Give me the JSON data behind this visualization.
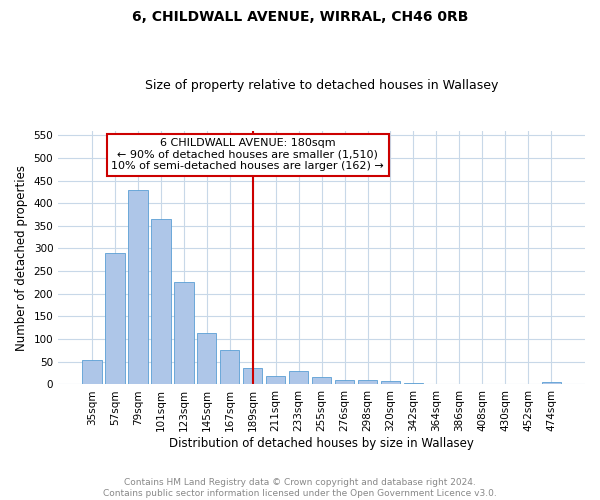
{
  "title1": "6, CHILDWALL AVENUE, WIRRAL, CH46 0RB",
  "title2": "Size of property relative to detached houses in Wallasey",
  "xlabel": "Distribution of detached houses by size in Wallasey",
  "ylabel": "Number of detached properties",
  "bar_labels": [
    "35sqm",
    "57sqm",
    "79sqm",
    "101sqm",
    "123sqm",
    "145sqm",
    "167sqm",
    "189sqm",
    "211sqm",
    "233sqm",
    "255sqm",
    "276sqm",
    "298sqm",
    "320sqm",
    "342sqm",
    "364sqm",
    "386sqm",
    "408sqm",
    "430sqm",
    "452sqm",
    "474sqm"
  ],
  "bar_values": [
    55,
    290,
    430,
    365,
    225,
    113,
    77,
    37,
    18,
    29,
    17,
    10,
    9,
    8,
    4,
    0,
    0,
    0,
    0,
    0,
    5
  ],
  "bar_color": "#aec6e8",
  "bar_edge_color": "#5a9fd4",
  "vline_x_idx": 7,
  "vline_color": "#cc0000",
  "annotation_text": "6 CHILDWALL AVENUE: 180sqm\n← 90% of detached houses are smaller (1,510)\n10% of semi-detached houses are larger (162) →",
  "annotation_box_color": "#ffffff",
  "annotation_box_edge_color": "#cc0000",
  "ylim": [
    0,
    560
  ],
  "yticks": [
    0,
    50,
    100,
    150,
    200,
    250,
    300,
    350,
    400,
    450,
    500,
    550
  ],
  "bg_color": "#ffffff",
  "grid_color": "#c8d8e8",
  "footer_text": "Contains HM Land Registry data © Crown copyright and database right 2024.\nContains public sector information licensed under the Open Government Licence v3.0.",
  "title1_fontsize": 10,
  "title2_fontsize": 9,
  "xlabel_fontsize": 8.5,
  "ylabel_fontsize": 8.5,
  "tick_fontsize": 7.5,
  "annotation_fontsize": 8,
  "footer_fontsize": 6.5
}
